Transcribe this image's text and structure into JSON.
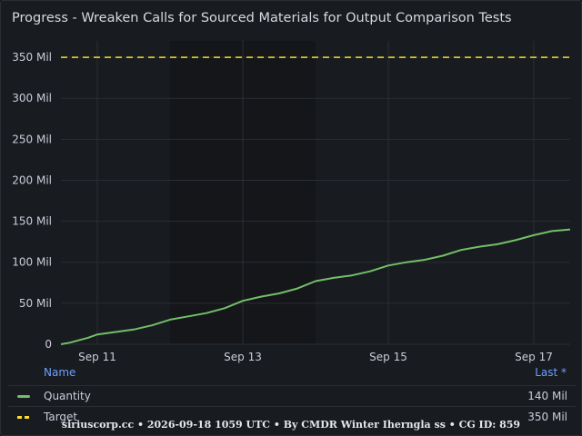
{
  "panel": {
    "title": "Progress - Wreaken Calls for Sourced Materials for Output Comparison Tests"
  },
  "legend": {
    "header_name": "Name",
    "header_last": "Last *",
    "items": [
      {
        "name": "Quantity",
        "last": "140 Mil",
        "color": "#73bf69",
        "style": "solid"
      },
      {
        "name": "Target",
        "last": "350 Mil",
        "color": "#fade2a",
        "style": "dashed"
      }
    ]
  },
  "footer": "siriuscorp.cc • 2026-09-18 1059 UTC • By CMDR Winter Iherngla ss • CG ID: 859",
  "chart_data": {
    "type": "line",
    "xlabel": "",
    "ylabel": "",
    "x_ticks": [
      "Sep 11",
      "Sep 13",
      "Sep 15",
      "Sep 17"
    ],
    "y_ticks": [
      "0",
      "50 Mil",
      "100 Mil",
      "150 Mil",
      "200 Mil",
      "250 Mil",
      "300 Mil",
      "350 Mil"
    ],
    "xlim": [
      "2026-09-10T12:00",
      "2026-09-17T12:00"
    ],
    "ylim": [
      0,
      370
    ],
    "units": "Mil",
    "grid": true,
    "shaded_band": {
      "from": "2026-09-12",
      "to": "2026-09-14",
      "color": "#14161a"
    },
    "series": [
      {
        "name": "Quantity",
        "color": "#73bf69",
        "style": "solid",
        "x": [
          "2026-09-10T12:00",
          "2026-09-10T15:00",
          "2026-09-10T21:00",
          "2026-09-11T00:00",
          "2026-09-11T06:00",
          "2026-09-11T12:00",
          "2026-09-11T18:00",
          "2026-09-12T00:00",
          "2026-09-12T06:00",
          "2026-09-12T12:00",
          "2026-09-12T18:00",
          "2026-09-13T00:00",
          "2026-09-13T06:00",
          "2026-09-13T12:00",
          "2026-09-13T18:00",
          "2026-09-14T00:00",
          "2026-09-14T06:00",
          "2026-09-14T12:00",
          "2026-09-14T18:00",
          "2026-09-15T00:00",
          "2026-09-15T06:00",
          "2026-09-15T12:00",
          "2026-09-15T18:00",
          "2026-09-16T00:00",
          "2026-09-16T06:00",
          "2026-09-16T12:00",
          "2026-09-16T18:00",
          "2026-09-17T00:00",
          "2026-09-17T06:00",
          "2026-09-17T12:00"
        ],
        "values": [
          0,
          2,
          8,
          12,
          15,
          18,
          23,
          30,
          34,
          38,
          44,
          53,
          58,
          62,
          68,
          77,
          81,
          84,
          89,
          96,
          100,
          103,
          108,
          115,
          119,
          122,
          127,
          133,
          138,
          140
        ]
      },
      {
        "name": "Target",
        "color": "#fade2a",
        "style": "dashed",
        "x": [
          "2026-09-10T12:00",
          "2026-09-17T12:00"
        ],
        "values": [
          350,
          350
        ]
      }
    ]
  }
}
